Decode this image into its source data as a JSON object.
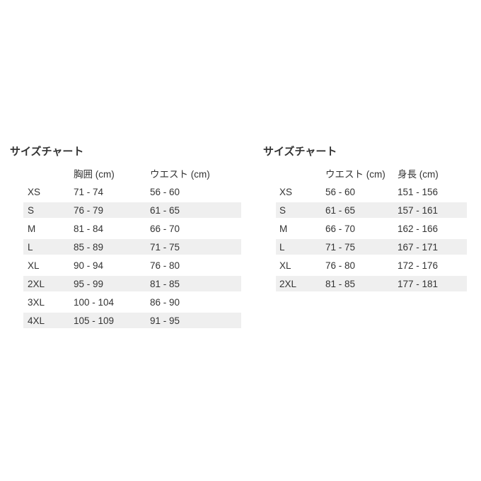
{
  "chart_data": [
    {
      "type": "table",
      "title": "サイズチャート",
      "columns": [
        "",
        "胸囲 (cm)",
        "ウエスト (cm)"
      ],
      "rows": [
        [
          "XS",
          "71 - 74",
          "56 - 60"
        ],
        [
          "S",
          "76 - 79",
          "61 - 65"
        ],
        [
          "M",
          "81 - 84",
          "66 - 70"
        ],
        [
          "L",
          "85 - 89",
          "71 - 75"
        ],
        [
          "XL",
          "90 - 94",
          "76 - 80"
        ],
        [
          "2XL",
          "95 - 99",
          "81 - 85"
        ],
        [
          "3XL",
          "100 - 104",
          "86 - 90"
        ],
        [
          "4XL",
          "105 - 109",
          "91 - 95"
        ]
      ]
    },
    {
      "type": "table",
      "title": "サイズチャート",
      "columns": [
        "",
        "ウエスト (cm)",
        "身長 (cm)"
      ],
      "rows": [
        [
          "XS",
          "56 - 60",
          "151 - 156"
        ],
        [
          "S",
          "61 - 65",
          "157 - 161"
        ],
        [
          "M",
          "66 - 70",
          "162 - 166"
        ],
        [
          "L",
          "71 - 75",
          "167 - 171"
        ],
        [
          "XL",
          "76 - 80",
          "172 - 176"
        ],
        [
          "2XL",
          "81 - 85",
          "177 - 181"
        ]
      ]
    }
  ],
  "colors": {
    "background": "#ffffff",
    "row_alt": "#efefef",
    "text": "#333333"
  }
}
